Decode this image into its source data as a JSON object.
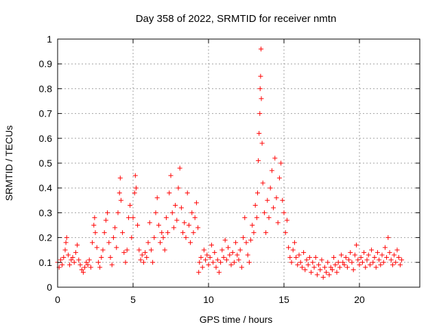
{
  "chart_data": {
    "type": "scatter",
    "title": "Day 358 of 2022, SRMTID for receiver nmtn",
    "xlabel": "GPS time / hours",
    "ylabel": "SRMTID / TECUs",
    "xlim": [
      0,
      24
    ],
    "ylim": [
      0,
      1
    ],
    "xticks": [
      0,
      5,
      10,
      15,
      20
    ],
    "yticks": [
      0,
      0.1,
      0.2,
      0.3,
      0.4,
      0.5,
      0.6,
      0.7,
      0.8,
      0.9,
      1
    ],
    "grid": true,
    "marker": "+",
    "color": "#ff0000",
    "series": [
      {
        "name": "nmtn",
        "points": [
          [
            0.0,
            0.1
          ],
          [
            0.1,
            0.08
          ],
          [
            0.2,
            0.11
          ],
          [
            0.3,
            0.09
          ],
          [
            0.4,
            0.12
          ],
          [
            0.5,
            0.15
          ],
          [
            0.55,
            0.18
          ],
          [
            0.6,
            0.2
          ],
          [
            0.7,
            0.13
          ],
          [
            0.8,
            0.09
          ],
          [
            0.9,
            0.11
          ],
          [
            1.0,
            0.12
          ],
          [
            1.1,
            0.1
          ],
          [
            1.2,
            0.14
          ],
          [
            1.3,
            0.17
          ],
          [
            1.4,
            0.11
          ],
          [
            1.5,
            0.09
          ],
          [
            1.6,
            0.07
          ],
          [
            1.7,
            0.06
          ],
          [
            1.8,
            0.08
          ],
          [
            1.9,
            0.1
          ],
          [
            2.0,
            0.09
          ],
          [
            2.1,
            0.11
          ],
          [
            2.2,
            0.08
          ],
          [
            2.3,
            0.18
          ],
          [
            2.4,
            0.25
          ],
          [
            2.45,
            0.28
          ],
          [
            2.5,
            0.22
          ],
          [
            2.6,
            0.16
          ],
          [
            2.7,
            0.1
          ],
          [
            2.8,
            0.08
          ],
          [
            2.9,
            0.12
          ],
          [
            3.0,
            0.15
          ],
          [
            3.1,
            0.22
          ],
          [
            3.2,
            0.27
          ],
          [
            3.3,
            0.3
          ],
          [
            3.4,
            0.18
          ],
          [
            3.5,
            0.12
          ],
          [
            3.6,
            0.09
          ],
          [
            3.7,
            0.2
          ],
          [
            3.8,
            0.24
          ],
          [
            3.9,
            0.16
          ],
          [
            4.0,
            0.3
          ],
          [
            4.1,
            0.38
          ],
          [
            4.15,
            0.44
          ],
          [
            4.2,
            0.35
          ],
          [
            4.3,
            0.22
          ],
          [
            4.4,
            0.14
          ],
          [
            4.5,
            0.1
          ],
          [
            4.6,
            0.15
          ],
          [
            4.7,
            0.28
          ],
          [
            4.8,
            0.33
          ],
          [
            4.9,
            0.2
          ],
          [
            5.0,
            0.28
          ],
          [
            5.1,
            0.38
          ],
          [
            5.15,
            0.45
          ],
          [
            5.2,
            0.4
          ],
          [
            5.3,
            0.25
          ],
          [
            5.4,
            0.15
          ],
          [
            5.5,
            0.11
          ],
          [
            5.6,
            0.13
          ],
          [
            5.7,
            0.1
          ],
          [
            5.8,
            0.14
          ],
          [
            5.9,
            0.12
          ],
          [
            6.0,
            0.18
          ],
          [
            6.1,
            0.26
          ],
          [
            6.2,
            0.15
          ],
          [
            6.3,
            0.1
          ],
          [
            6.4,
            0.2
          ],
          [
            6.5,
            0.3
          ],
          [
            6.6,
            0.36
          ],
          [
            6.7,
            0.25
          ],
          [
            6.8,
            0.18
          ],
          [
            6.9,
            0.22
          ],
          [
            7.0,
            0.2
          ],
          [
            7.1,
            0.15
          ],
          [
            7.2,
            0.28
          ],
          [
            7.3,
            0.22
          ],
          [
            7.4,
            0.38
          ],
          [
            7.5,
            0.45
          ],
          [
            7.6,
            0.3
          ],
          [
            7.7,
            0.24
          ],
          [
            7.8,
            0.33
          ],
          [
            7.9,
            0.27
          ],
          [
            8.0,
            0.4
          ],
          [
            8.1,
            0.48
          ],
          [
            8.2,
            0.32
          ],
          [
            8.3,
            0.22
          ],
          [
            8.4,
            0.26
          ],
          [
            8.5,
            0.2
          ],
          [
            8.6,
            0.38
          ],
          [
            8.7,
            0.25
          ],
          [
            8.8,
            0.18
          ],
          [
            8.9,
            0.3
          ],
          [
            9.0,
            0.22
          ],
          [
            9.1,
            0.28
          ],
          [
            9.2,
            0.34
          ],
          [
            9.3,
            0.24
          ],
          [
            9.35,
            0.06
          ],
          [
            9.4,
            0.1
          ],
          [
            9.5,
            0.12
          ],
          [
            9.6,
            0.08
          ],
          [
            9.7,
            0.15
          ],
          [
            9.8,
            0.11
          ],
          [
            9.9,
            0.13
          ],
          [
            10.0,
            0.09
          ],
          [
            10.1,
            0.12
          ],
          [
            10.2,
            0.17
          ],
          [
            10.3,
            0.1
          ],
          [
            10.4,
            0.14
          ],
          [
            10.5,
            0.08
          ],
          [
            10.6,
            0.11
          ],
          [
            10.7,
            0.06
          ],
          [
            10.8,
            0.1
          ],
          [
            10.9,
            0.15
          ],
          [
            11.0,
            0.12
          ],
          [
            11.1,
            0.19
          ],
          [
            11.2,
            0.11
          ],
          [
            11.3,
            0.16
          ],
          [
            11.4,
            0.13
          ],
          [
            11.5,
            0.09
          ],
          [
            11.6,
            0.14
          ],
          [
            11.7,
            0.1
          ],
          [
            11.8,
            0.18
          ],
          [
            11.9,
            0.13
          ],
          [
            12.0,
            0.11
          ],
          [
            12.1,
            0.15
          ],
          [
            12.2,
            0.08
          ],
          [
            12.3,
            0.2
          ],
          [
            12.4,
            0.28
          ],
          [
            12.5,
            0.18
          ],
          [
            12.6,
            0.13
          ],
          [
            12.7,
            0.1
          ],
          [
            12.8,
            0.19
          ],
          [
            12.9,
            0.25
          ],
          [
            13.0,
            0.22
          ],
          [
            13.1,
            0.33
          ],
          [
            13.2,
            0.28
          ],
          [
            13.25,
            0.38
          ],
          [
            13.3,
            0.51
          ],
          [
            13.35,
            0.62
          ],
          [
            13.4,
            0.7
          ],
          [
            13.42,
            0.8
          ],
          [
            13.45,
            0.85
          ],
          [
            13.48,
            0.96
          ],
          [
            13.5,
            0.76
          ],
          [
            13.55,
            0.58
          ],
          [
            13.6,
            0.42
          ],
          [
            13.7,
            0.3
          ],
          [
            13.8,
            0.22
          ],
          [
            13.9,
            0.35
          ],
          [
            14.0,
            0.28
          ],
          [
            14.1,
            0.4
          ],
          [
            14.2,
            0.47
          ],
          [
            14.3,
            0.32
          ],
          [
            14.4,
            0.52
          ],
          [
            14.5,
            0.36
          ],
          [
            14.6,
            0.26
          ],
          [
            14.7,
            0.44
          ],
          [
            14.8,
            0.5
          ],
          [
            14.9,
            0.35
          ],
          [
            15.0,
            0.3
          ],
          [
            15.1,
            0.22
          ],
          [
            15.2,
            0.27
          ],
          [
            15.3,
            0.16
          ],
          [
            15.4,
            0.12
          ],
          [
            15.5,
            0.1
          ],
          [
            15.6,
            0.15
          ],
          [
            15.7,
            0.18
          ],
          [
            15.8,
            0.12
          ],
          [
            15.9,
            0.09
          ],
          [
            16.0,
            0.13
          ],
          [
            16.1,
            0.1
          ],
          [
            16.2,
            0.08
          ],
          [
            16.3,
            0.14
          ],
          [
            16.4,
            0.07
          ],
          [
            16.5,
            0.11
          ],
          [
            16.6,
            0.09
          ],
          [
            16.7,
            0.12
          ],
          [
            16.8,
            0.06
          ],
          [
            16.9,
            0.1
          ],
          [
            17.0,
            0.08
          ],
          [
            17.1,
            0.12
          ],
          [
            17.2,
            0.05
          ],
          [
            17.3,
            0.09
          ],
          [
            17.4,
            0.07
          ],
          [
            17.5,
            0.11
          ],
          [
            17.6,
            0.04
          ],
          [
            17.7,
            0.08
          ],
          [
            17.8,
            0.06
          ],
          [
            17.9,
            0.1
          ],
          [
            18.0,
            0.05
          ],
          [
            18.1,
            0.08
          ],
          [
            18.2,
            0.07
          ],
          [
            18.3,
            0.12
          ],
          [
            18.4,
            0.09
          ],
          [
            18.5,
            0.06
          ],
          [
            18.6,
            0.1
          ],
          [
            18.7,
            0.08
          ],
          [
            18.8,
            0.13
          ],
          [
            18.9,
            0.1
          ],
          [
            19.0,
            0.09
          ],
          [
            19.1,
            0.12
          ],
          [
            19.2,
            0.08
          ],
          [
            19.3,
            0.11
          ],
          [
            19.4,
            0.14
          ],
          [
            19.5,
            0.1
          ],
          [
            19.6,
            0.07
          ],
          [
            19.7,
            0.13
          ],
          [
            19.8,
            0.17
          ],
          [
            19.9,
            0.11
          ],
          [
            20.0,
            0.09
          ],
          [
            20.1,
            0.12
          ],
          [
            20.2,
            0.1
          ],
          [
            20.3,
            0.14
          ],
          [
            20.4,
            0.08
          ],
          [
            20.5,
            0.11
          ],
          [
            20.6,
            0.13
          ],
          [
            20.7,
            0.09
          ],
          [
            20.8,
            0.15
          ],
          [
            20.9,
            0.1
          ],
          [
            21.0,
            0.12
          ],
          [
            21.1,
            0.08
          ],
          [
            21.2,
            0.14
          ],
          [
            21.3,
            0.11
          ],
          [
            21.4,
            0.09
          ],
          [
            21.5,
            0.13
          ],
          [
            21.6,
            0.1
          ],
          [
            21.7,
            0.16
          ],
          [
            21.8,
            0.12
          ],
          [
            21.9,
            0.2
          ],
          [
            22.0,
            0.14
          ],
          [
            22.1,
            0.11
          ],
          [
            22.2,
            0.09
          ],
          [
            22.3,
            0.13
          ],
          [
            22.4,
            0.1
          ],
          [
            22.5,
            0.15
          ],
          [
            22.6,
            0.12
          ],
          [
            22.7,
            0.09
          ],
          [
            22.8,
            0.11
          ]
        ]
      }
    ]
  }
}
